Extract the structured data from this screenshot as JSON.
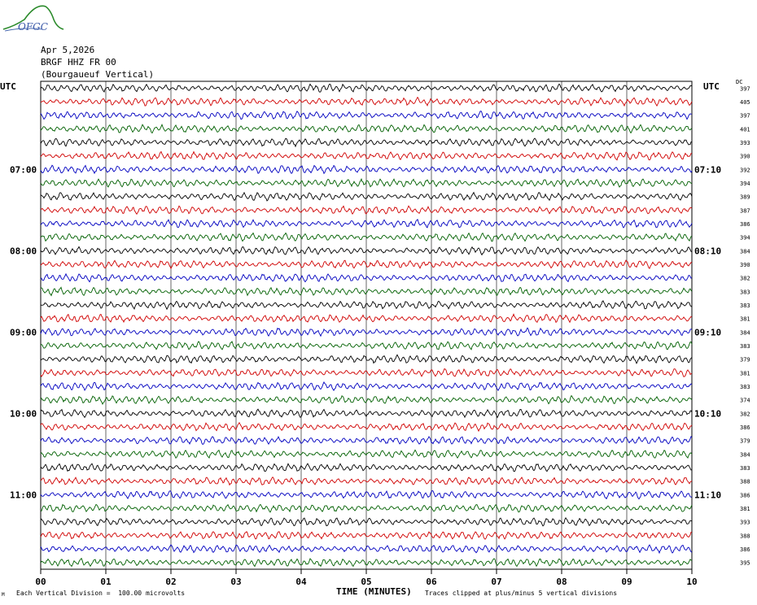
{
  "header": {
    "date": "Apr 5,2026",
    "station": "BRGF HHZ FR 00",
    "location": "(Bourgaueuf Vertical)"
  },
  "logo": {
    "text": "OFGC",
    "icon": "mountain-logo-icon"
  },
  "utc_left_label": "UTC",
  "utc_right_label": "UTC",
  "dc_label": "DC",
  "footer": {
    "scale_note": "Each Vertical Division =  100.00 microvolts",
    "x_axis_title": "TIME (MINUTES)",
    "clip_note": "Traces clipped at plus/minus 5 vertical divisions",
    "corner_mark": "M"
  },
  "colors": {
    "trace_cycle": [
      "#000000",
      "#d00000",
      "#0000c0",
      "#006000"
    ],
    "grid": "#000000"
  },
  "chart_data": {
    "type": "line",
    "title": "",
    "xlabel": "TIME (MINUTES)",
    "ylabel": "",
    "xlim": [
      0,
      10
    ],
    "x_ticks": [
      "00",
      "01",
      "02",
      "03",
      "04",
      "05",
      "06",
      "07",
      "08",
      "09",
      "10"
    ],
    "grid": true,
    "trace_count": 36,
    "left_hour_labels": [
      {
        "row": 6,
        "label": "07:00"
      },
      {
        "row": 12,
        "label": "08:00"
      },
      {
        "row": 18,
        "label": "09:00"
      },
      {
        "row": 24,
        "label": "10:00"
      },
      {
        "row": 30,
        "label": "11:00"
      }
    ],
    "right_hour_labels": [
      {
        "row": 6,
        "label": "07:10"
      },
      {
        "row": 12,
        "label": "08:10"
      },
      {
        "row": 18,
        "label": "09:10"
      },
      {
        "row": 24,
        "label": "10:10"
      },
      {
        "row": 30,
        "label": "11:10"
      }
    ],
    "dc_offsets": [
      "397",
      "405",
      "397",
      "401",
      "393",
      "390",
      "392",
      "394",
      "389",
      "387",
      "386",
      "394",
      "384",
      "390",
      "382",
      "383",
      "383",
      "381",
      "384",
      "383",
      "379",
      "381",
      "383",
      "374",
      "382",
      "386",
      "379",
      "384",
      "383",
      "388",
      "386",
      "381",
      "393",
      "388",
      "386",
      "395"
    ]
  }
}
